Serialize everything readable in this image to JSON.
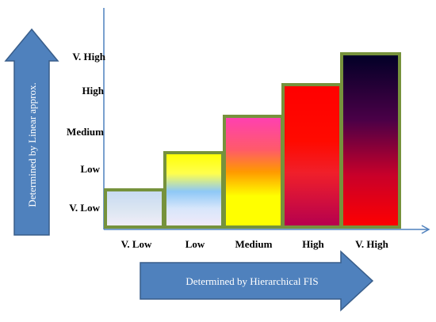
{
  "diagram": {
    "y_levels": [
      "V. Low",
      "Low",
      "Medium",
      "High",
      "V. High"
    ],
    "x_levels": [
      "V. Low",
      "Low",
      "Medium",
      "High",
      "V. High"
    ],
    "bars": [
      {
        "x": "V. Low",
        "y": "V. Low"
      },
      {
        "x": "Low",
        "y": "Low"
      },
      {
        "x": "Medium",
        "y": "Medium"
      },
      {
        "x": "High",
        "y": "High"
      },
      {
        "x": "V. High",
        "y": "V. High"
      }
    ],
    "vertical_arrow_label": "Determined by Linear approx.",
    "horizontal_arrow_label": "Determined by Hierarchical FIS"
  },
  "colors": {
    "axis": "#4f81bd",
    "bar_outline": "#76923c",
    "arrow_fill": "#4f81bd",
    "arrow_stroke": "#385d8a"
  }
}
